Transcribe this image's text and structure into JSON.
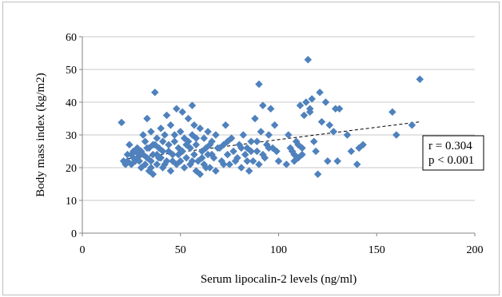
{
  "chart_data": {
    "type": "scatter",
    "title": "",
    "xlabel": "Serum lipocalin-2 levels (ng/ml)",
    "ylabel": "Body mass index (kg/m2)",
    "xlim": [
      0,
      200
    ],
    "ylim": [
      0,
      60
    ],
    "x_ticks": [
      0,
      50,
      100,
      150,
      200
    ],
    "y_ticks": [
      0,
      10,
      20,
      30,
      40,
      50,
      60
    ],
    "grid": "horizontal",
    "legend": "none",
    "marker": "diamond",
    "series": [
      {
        "color": "#4f81bd",
        "points": [
          [
            20,
            33.8
          ],
          [
            22,
            21
          ],
          [
            23,
            22
          ],
          [
            24,
            27
          ],
          [
            25,
            24
          ],
          [
            26,
            25
          ],
          [
            27,
            22
          ],
          [
            28,
            23
          ],
          [
            28,
            26
          ],
          [
            29,
            24
          ],
          [
            30,
            20
          ],
          [
            30,
            25
          ],
          [
            31,
            30
          ],
          [
            32,
            28
          ],
          [
            32,
            21
          ],
          [
            33,
            35
          ],
          [
            33,
            23
          ],
          [
            34,
            26
          ],
          [
            34,
            19
          ],
          [
            35,
            31
          ],
          [
            35,
            22
          ],
          [
            36,
            24
          ],
          [
            36,
            18
          ],
          [
            37,
            43
          ],
          [
            37,
            27
          ],
          [
            38,
            29
          ],
          [
            38,
            21
          ],
          [
            39,
            26
          ],
          [
            40,
            32
          ],
          [
            40,
            23
          ],
          [
            41,
            25
          ],
          [
            41,
            20
          ],
          [
            42,
            30
          ],
          [
            43,
            22
          ],
          [
            43,
            36
          ],
          [
            44,
            27
          ],
          [
            45,
            33
          ],
          [
            45,
            19
          ],
          [
            46,
            24
          ],
          [
            47,
            28
          ],
          [
            48,
            21
          ],
          [
            48,
            38
          ],
          [
            49,
            26
          ],
          [
            50,
            31
          ],
          [
            50,
            22
          ],
          [
            51,
            25
          ],
          [
            51,
            37
          ],
          [
            52,
            29
          ],
          [
            52,
            20
          ],
          [
            53,
            23
          ],
          [
            54,
            28
          ],
          [
            54,
            35
          ],
          [
            55,
            21
          ],
          [
            55,
            26
          ],
          [
            56,
            30
          ],
          [
            56,
            39
          ],
          [
            57,
            24
          ],
          [
            57,
            33
          ],
          [
            58,
            19
          ],
          [
            58,
            27
          ],
          [
            59,
            22
          ],
          [
            60,
            32
          ],
          [
            60,
            18
          ],
          [
            61,
            25
          ],
          [
            62,
            29
          ],
          [
            62,
            21
          ],
          [
            63,
            26
          ],
          [
            64,
            24
          ],
          [
            64,
            31
          ],
          [
            65,
            20
          ],
          [
            66,
            28
          ],
          [
            67,
            23
          ],
          [
            68,
            30
          ],
          [
            68,
            19
          ],
          [
            70,
            26
          ],
          [
            71,
            22
          ],
          [
            72,
            27
          ],
          [
            73,
            33
          ],
          [
            74,
            24
          ],
          [
            75,
            21
          ],
          [
            76,
            29
          ],
          [
            77,
            25
          ],
          [
            78,
            22
          ],
          [
            80,
            27
          ],
          [
            81,
            20
          ],
          [
            82,
            30
          ],
          [
            83,
            24
          ],
          [
            84,
            26
          ],
          [
            85,
            19
          ],
          [
            86,
            28
          ],
          [
            87,
            22
          ],
          [
            88,
            35
          ],
          [
            89,
            25
          ],
          [
            90,
            45.5
          ],
          [
            90,
            21
          ],
          [
            91,
            31
          ],
          [
            92,
            39
          ],
          [
            93,
            23
          ],
          [
            94,
            27
          ],
          [
            95,
            30
          ],
          [
            96,
            38
          ],
          [
            97,
            26
          ],
          [
            98,
            33
          ],
          [
            100,
            22
          ],
          [
            104,
            21
          ],
          [
            105,
            30
          ],
          [
            107,
            25
          ],
          [
            108,
            24
          ],
          [
            109,
            28
          ],
          [
            110,
            23
          ],
          [
            111,
            39
          ],
          [
            112,
            26
          ],
          [
            113,
            36
          ],
          [
            114,
            40
          ],
          [
            115,
            53
          ],
          [
            116,
            38
          ],
          [
            117,
            41
          ],
          [
            118,
            28
          ],
          [
            120,
            18
          ],
          [
            121,
            43
          ],
          [
            122,
            34
          ],
          [
            124,
            40
          ],
          [
            125,
            22
          ],
          [
            126,
            33
          ],
          [
            128,
            31
          ],
          [
            129,
            38
          ],
          [
            130,
            22
          ],
          [
            131,
            38
          ],
          [
            135,
            30
          ],
          [
            137,
            25
          ],
          [
            140,
            21
          ],
          [
            141,
            26
          ],
          [
            143,
            27
          ],
          [
            158,
            37
          ],
          [
            160,
            30
          ],
          [
            168,
            33
          ],
          [
            172,
            47
          ],
          [
            21,
            22
          ],
          [
            23,
            24
          ],
          [
            25,
            21
          ],
          [
            26,
            23
          ],
          [
            27,
            25
          ],
          [
            29,
            22
          ],
          [
            31,
            24
          ],
          [
            33,
            26
          ],
          [
            35,
            20
          ],
          [
            36,
            27
          ],
          [
            38,
            24
          ],
          [
            39,
            23
          ],
          [
            41,
            28
          ],
          [
            42,
            21
          ],
          [
            44,
            25
          ],
          [
            46,
            22
          ],
          [
            47,
            30
          ],
          [
            49,
            24
          ],
          [
            53,
            27
          ],
          [
            56,
            22
          ],
          [
            58,
            29
          ],
          [
            61,
            23
          ],
          [
            63,
            20
          ],
          [
            65,
            27
          ],
          [
            66,
            24
          ],
          [
            69,
            26
          ],
          [
            72,
            21
          ],
          [
            74,
            28
          ],
          [
            79,
            23
          ],
          [
            81,
            26
          ],
          [
            84,
            22
          ],
          [
            86,
            25
          ],
          [
            89,
            28
          ],
          [
            92,
            24
          ],
          [
            95,
            26
          ],
          [
            99,
            25
          ],
          [
            106,
            26
          ],
          [
            108,
            22
          ],
          [
            110,
            27
          ],
          [
            112,
            24
          ],
          [
            116,
            37
          ],
          [
            119,
            25
          ]
        ]
      }
    ],
    "trendline": {
      "style": "dashed",
      "from": [
        20,
        22.5
      ],
      "to": [
        172,
        34
      ]
    },
    "annotations": [
      {
        "lines": [
          "r = 0.304",
          "p < 0.001"
        ],
        "position": "right"
      }
    ]
  }
}
